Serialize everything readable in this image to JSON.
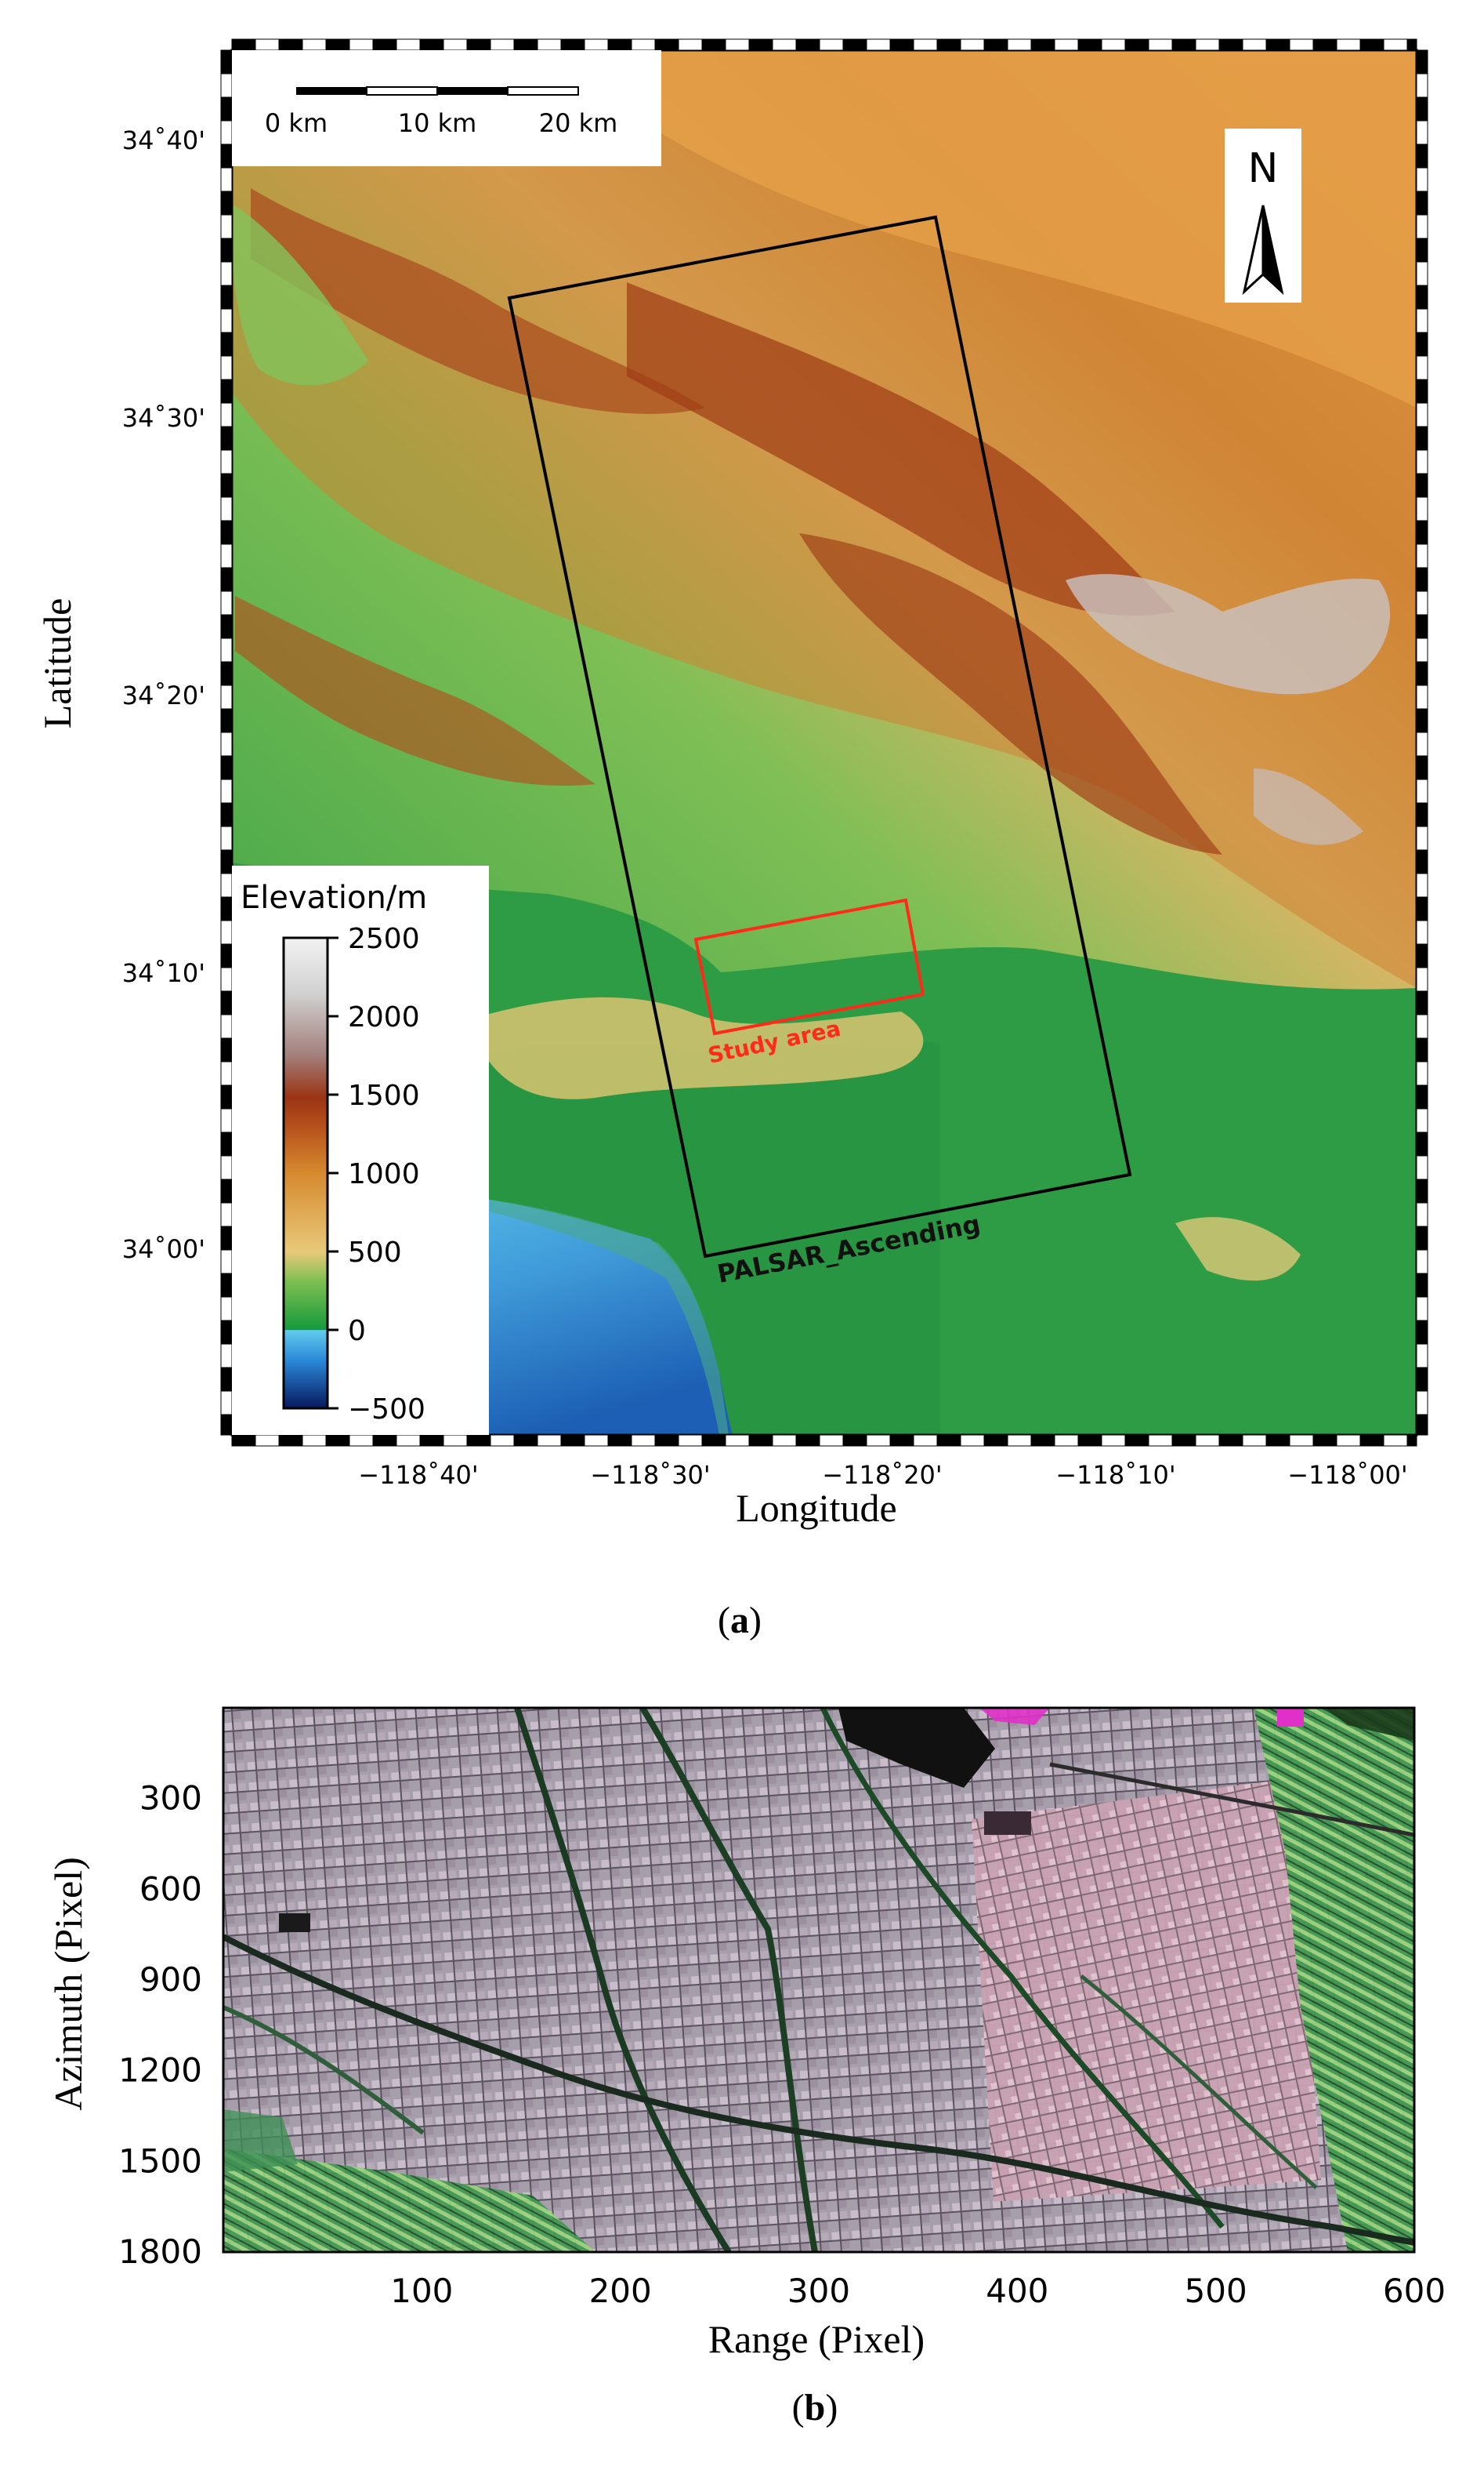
{
  "panel_a": {
    "label": "(a)",
    "label_letter": "a",
    "xlabel": "Longitude",
    "ylabel": "Latitude",
    "lon_ticks": [
      "−118˚40'",
      "−118˚30'",
      "−118˚20'",
      "−118˚10'",
      "−118˚00'"
    ],
    "lat_ticks": [
      "34˚40'",
      "34˚30'",
      "34˚20'",
      "34˚10'",
      "34˚00'"
    ],
    "scale_bar": {
      "labels": [
        "0 km",
        "10 km",
        "20 km"
      ]
    },
    "north_arrow": {
      "label": "N",
      "icon": "north-arrow-icon"
    },
    "legend": {
      "title": "Elevation/m",
      "ticks": [
        "2500",
        "2000",
        "1500",
        "1000",
        "500",
        "0",
        "−500"
      ],
      "range": [
        -500,
        2500
      ],
      "colors": [
        "#07195e",
        "#2a86d6",
        "#63cbee",
        "#169a3c",
        "#7dbf51",
        "#e8c97a",
        "#d6892e",
        "#b5501c",
        "#9b3414",
        "#a37f7b",
        "#d0d0d0",
        "#f2f2f2"
      ]
    },
    "footprint": {
      "label": "PALSAR_Ascending",
      "color": "#000000"
    },
    "study_area": {
      "label": "Study area",
      "color": "#ff2a1a"
    }
  },
  "panel_b": {
    "label": "(b)",
    "label_letter": "b",
    "xlabel": "Range (Pixel)",
    "ylabel": "Azimuth (Pixel)",
    "x_ticks": [
      "100",
      "200",
      "300",
      "400",
      "500",
      "600"
    ],
    "y_ticks": [
      "300",
      "600",
      "900",
      "1200",
      "1500",
      "1800"
    ],
    "x_range": [
      0,
      600
    ],
    "y_range": [
      0,
      1800
    ]
  }
}
